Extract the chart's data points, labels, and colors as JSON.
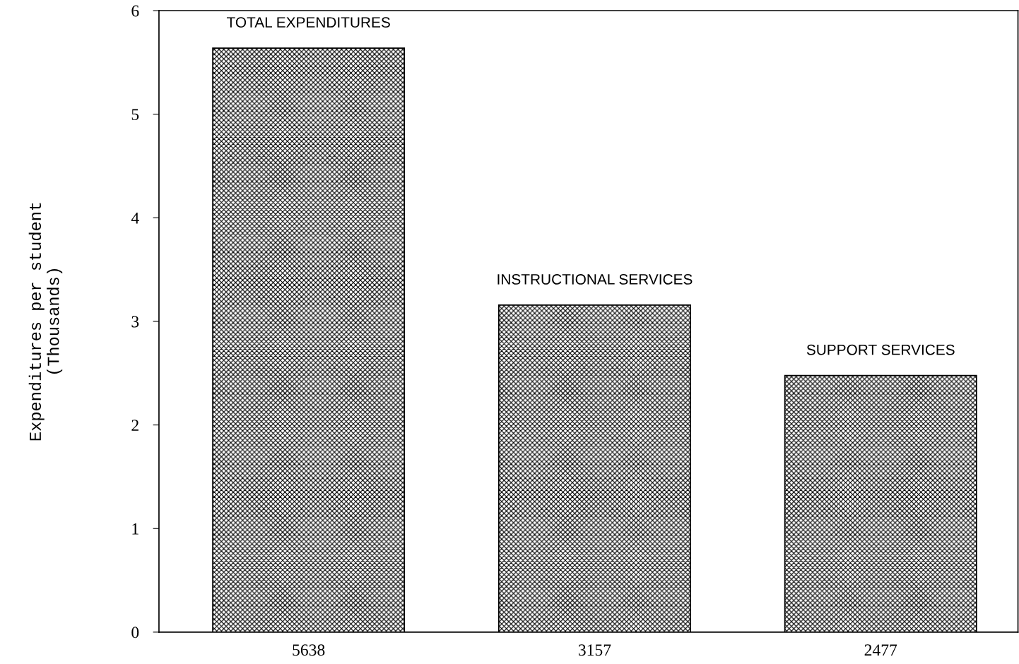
{
  "chart_data": {
    "type": "bar",
    "ylabel": "Expenditures per student\n(Thousands)",
    "categories": [
      "5638",
      "3157",
      "2477"
    ],
    "values": [
      5.638,
      3.157,
      2.477
    ],
    "color": "#000000",
    "ylim": [
      0,
      6
    ],
    "yticks": [
      0,
      1,
      2,
      3,
      4,
      5,
      6
    ],
    "grid": false,
    "annotations": [
      {
        "text": "TOTAL EXPENDITURES",
        "x": "5638",
        "y": 5.638
      },
      {
        "text": "INSTRUCTIONAL SERVICES",
        "x": "3157",
        "y": 3.157
      },
      {
        "text": "SUPPORT SERVICES",
        "x": "2477",
        "y": 2.477
      }
    ]
  }
}
